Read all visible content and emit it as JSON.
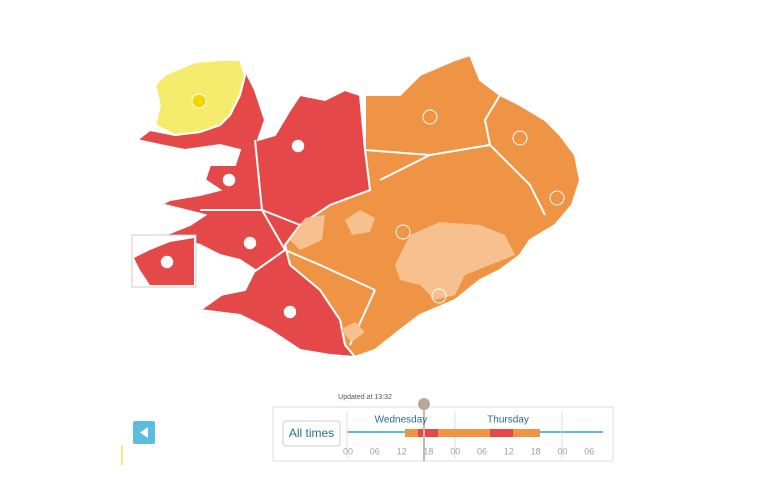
{
  "timeline": {
    "updated": "Updated at 13:32",
    "button": "All times",
    "days": [
      "Wednesday",
      "Thursday"
    ],
    "hours": [
      "00",
      "06",
      "12",
      "18",
      "00",
      "06",
      "12",
      "18",
      "00",
      "06"
    ]
  }
}
